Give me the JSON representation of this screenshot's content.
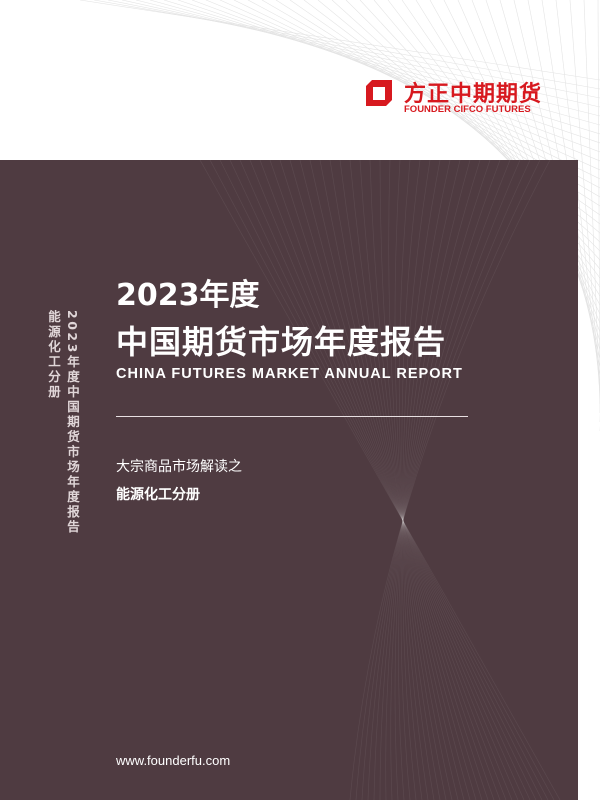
{
  "logo": {
    "name_cn": "方正中期期货",
    "name_en": "FOUNDER CIFCO FUTURES",
    "brand_color": "#d7191f"
  },
  "cover": {
    "year": "2023年度",
    "title": "中国期货市场年度报告",
    "title_en": "CHINA FUTURES MARKET ANNUAL REPORT",
    "subtitle_1": "大宗商品市场解读之",
    "subtitle_2": "能源化工分册",
    "website": "www.founderfu.com",
    "panel_color": "#4f3b41"
  },
  "spine": {
    "title": "2023年度中国期货市场年度报告",
    "volume": "能源化工分册"
  }
}
